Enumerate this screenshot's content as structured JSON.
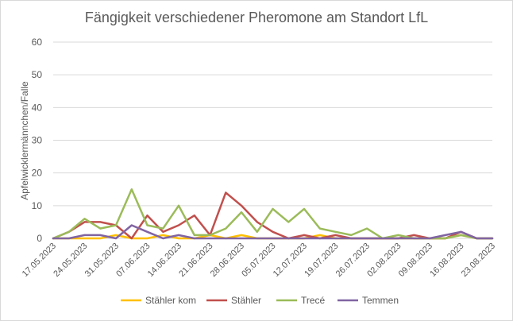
{
  "chart_data": {
    "type": "line",
    "title": "Fängigkeit verschiedener Pheromone am Standort LfL",
    "xlabel": "",
    "ylabel": "Apfelwicklermännchen/Falle",
    "ylim": [
      0,
      60
    ],
    "yticks": [
      0,
      10,
      20,
      30,
      40,
      50,
      60
    ],
    "grid": true,
    "legend_position": "bottom",
    "x": [
      "17.05.2023",
      "20.05.2023",
      "24.05.2023",
      "27.05.2023",
      "31.05.2023",
      "03.06.2023",
      "07.06.2023",
      "10.06.2023",
      "14.06.2023",
      "17.06.2023",
      "21.06.2023",
      "24.06.2023",
      "28.06.2023",
      "01.07.2023",
      "05.07.2023",
      "08.07.2023",
      "12.07.2023",
      "15.07.2023",
      "19.07.2023",
      "22.07.2023",
      "26.07.2023",
      "29.07.2023",
      "02.08.2023",
      "05.08.2023",
      "09.08.2023",
      "12.08.2023",
      "16.08.2023",
      "19.08.2023",
      "23.08.2023"
    ],
    "x_tick_labels": [
      "17.05.2023",
      "24.05.2023",
      "31.05.2023",
      "07.06.2023",
      "14.06.2023",
      "21.06.2023",
      "28.06.2023",
      "05.07.2023",
      "12.07.2023",
      "19.07.2023",
      "26.07.2023",
      "02.08.2023",
      "09.08.2023",
      "16.08.2023",
      "23.08.2023"
    ],
    "series": [
      {
        "name": "Stähler kom",
        "color": "#ffc000",
        "values": [
          0,
          0,
          0,
          0,
          1,
          0,
          0,
          1,
          0,
          0,
          1,
          0,
          1,
          0,
          0,
          0,
          0,
          1,
          0,
          0,
          0,
          0,
          0,
          0,
          0,
          0,
          1,
          0,
          0
        ]
      },
      {
        "name": "Stähler",
        "color": "#c0504d",
        "values": [
          0,
          2,
          5,
          5,
          4,
          0,
          7,
          2,
          4,
          7,
          1,
          14,
          10,
          5,
          2,
          0,
          1,
          0,
          1,
          0,
          0,
          0,
          0,
          1,
          0,
          0,
          2,
          0,
          0
        ]
      },
      {
        "name": "Trecé",
        "color": "#9bbb59",
        "values": [
          0,
          2,
          6,
          3,
          4,
          15,
          4,
          3,
          10,
          1,
          1,
          3,
          8,
          2,
          9,
          5,
          9,
          3,
          2,
          1,
          3,
          0,
          1,
          0,
          0,
          0,
          1,
          0,
          0
        ]
      },
      {
        "name": "Temmen",
        "color": "#8064a2",
        "values": [
          0,
          0,
          1,
          1,
          0,
          4,
          2,
          0,
          1,
          0,
          0,
          0,
          0,
          0,
          0,
          0,
          0,
          0,
          0,
          0,
          0,
          0,
          0,
          0,
          0,
          1,
          2,
          0,
          0
        ]
      }
    ]
  }
}
